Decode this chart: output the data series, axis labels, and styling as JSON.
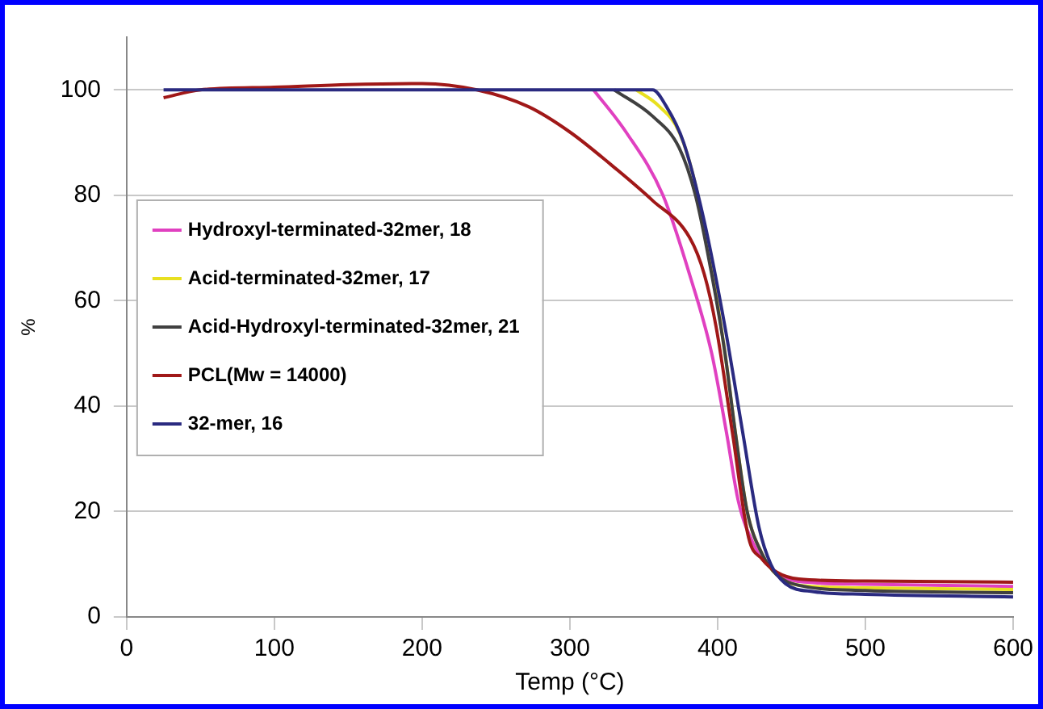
{
  "chart_data": {
    "type": "line",
    "xlabel": "Temp (°C)",
    "ylabel": "%",
    "xlim": [
      0,
      600
    ],
    "xticks": [
      0,
      100,
      200,
      300,
      400,
      500,
      600
    ],
    "ylim": [
      0,
      110
    ],
    "yticks": [
      0,
      20,
      40,
      60,
      80,
      100
    ],
    "grid": "y",
    "legend": "left",
    "marker": "none",
    "line_style": "solid",
    "series": [
      {
        "name": "Hydroxyl-terminated-32mer, 18",
        "color": "#e040c0",
        "x": [
          316,
          338,
          363,
          381,
          396,
          406,
          414,
          424,
          434,
          445,
          465,
          500,
          600
        ],
        "values": [
          100,
          92,
          80,
          65,
          50,
          35,
          22,
          14,
          10,
          7.5,
          6.5,
          6.2,
          5.8
        ]
      },
      {
        "name": "Acid-terminated-32mer, 17",
        "color": "#e8e020",
        "x": [
          345,
          360,
          374,
          385,
          396,
          405,
          412,
          420,
          430,
          440,
          455,
          500,
          600
        ],
        "values": [
          100,
          97,
          92,
          82,
          66,
          50,
          35,
          20,
          12,
          8,
          6,
          5.5,
          5.2
        ]
      },
      {
        "name": "Acid-Hydroxyl-terminated-32mer, 21",
        "color": "#404040",
        "x": [
          330,
          356,
          374,
          385,
          396,
          405,
          412,
          420,
          430,
          440,
          455,
          500,
          600
        ],
        "values": [
          100,
          95,
          89,
          80,
          65,
          50,
          35,
          20,
          12,
          8,
          6,
          5,
          4.6
        ]
      },
      {
        "name": "PCL(Mw = 14000)",
        "color": "#a01818",
        "x": [
          25,
          50,
          100,
          150,
          200,
          237,
          272,
          300,
          327,
          356,
          381,
          391,
          399,
          410,
          421,
          430,
          440,
          455,
          500,
          600
        ],
        "values": [
          98.5,
          100,
          100.5,
          101,
          101.2,
          100,
          96.8,
          92,
          86,
          79,
          72,
          65,
          55,
          35,
          15,
          11,
          8.5,
          7.2,
          6.8,
          6.6
        ]
      },
      {
        "name": "32-mer, 16",
        "color": "#2a2a80",
        "x": [
          25,
          100,
          200,
          300,
          340,
          356,
          365,
          377,
          391,
          405,
          417,
          428,
          436,
          446,
          465,
          500,
          600
        ],
        "values": [
          100,
          100,
          100,
          100,
          100,
          100,
          97,
          90,
          75,
          55,
          35,
          17,
          10,
          6.3,
          4.8,
          4.3,
          3.8
        ]
      }
    ]
  }
}
